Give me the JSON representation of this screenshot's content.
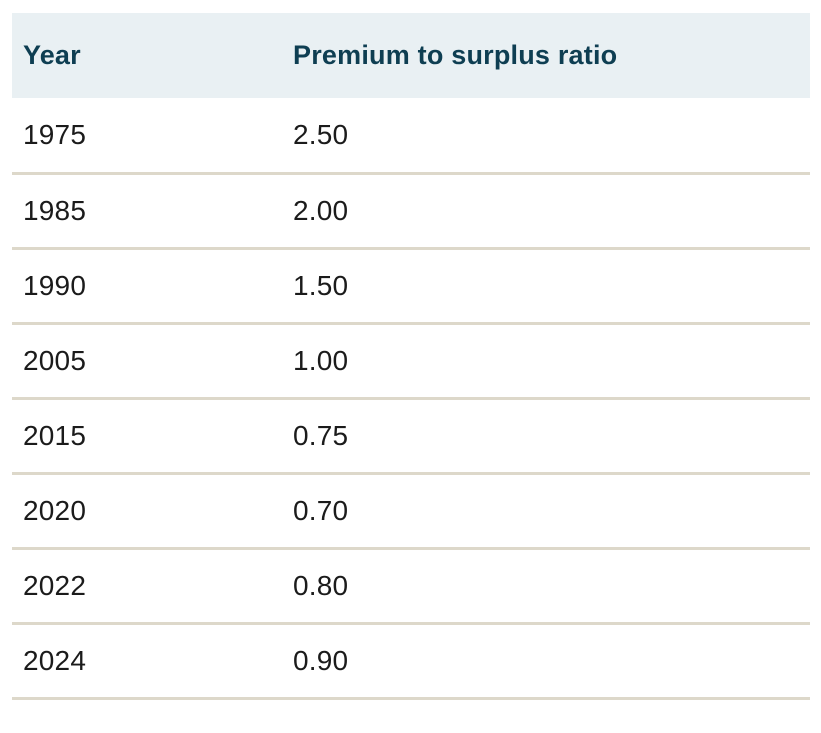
{
  "colors": {
    "header_background": "#e9f0f3",
    "header_text": "#0e3e52",
    "row_divider": "#ddd8ca",
    "body_text": "#1b1b1b"
  },
  "table": {
    "columns": [
      "Year",
      "Premium to surplus ratio"
    ],
    "rows": [
      {
        "year": "1975",
        "ratio": "2.50"
      },
      {
        "year": "1985",
        "ratio": "2.00"
      },
      {
        "year": "1990",
        "ratio": "1.50"
      },
      {
        "year": "2005",
        "ratio": "1.00"
      },
      {
        "year": "2015",
        "ratio": "0.75"
      },
      {
        "year": "2020",
        "ratio": "0.70"
      },
      {
        "year": "2022",
        "ratio": "0.80"
      },
      {
        "year": "2024",
        "ratio": "0.90"
      }
    ]
  },
  "chart_data": {
    "type": "table",
    "columns": [
      "Year",
      "Premium to surplus ratio"
    ],
    "x": [
      1975,
      1985,
      1990,
      2005,
      2015,
      2020,
      2022,
      2024
    ],
    "values": [
      2.5,
      2.0,
      1.5,
      1.0,
      0.75,
      0.7,
      0.8,
      0.9
    ],
    "xlabel": "Year",
    "ylabel": "Premium to surplus ratio",
    "title": "",
    "legend": "none",
    "grid": "horizontal row dividers only"
  }
}
